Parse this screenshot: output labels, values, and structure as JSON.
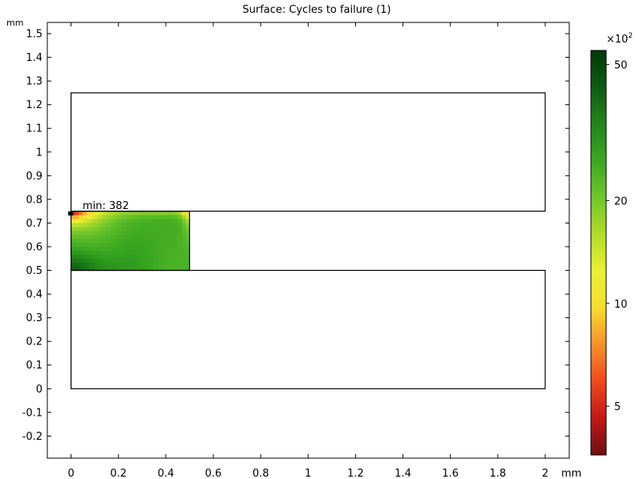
{
  "chart_data": {
    "type": "heatmap",
    "title": "Surface: Cycles to failure (1)",
    "unit_label": "mm",
    "xlim": [
      -0.1,
      2.1
    ],
    "ylim": [
      -0.3,
      1.55
    ],
    "x_ticks": [
      0,
      0.2,
      0.4,
      0.6,
      0.8,
      1,
      1.2,
      1.4,
      1.6,
      1.8,
      2
    ],
    "x_tick_labels": [
      "0",
      "0.2",
      "0.4",
      "0.6",
      "0.8",
      "1",
      "1.2",
      "1.4",
      "1.6",
      "1.8",
      "2"
    ],
    "y_ticks": [
      -0.2,
      -0.1,
      0,
      0.1,
      0.2,
      0.3,
      0.4,
      0.5,
      0.6,
      0.7,
      0.8,
      0.9,
      1,
      1.1,
      1.2,
      1.3,
      1.4,
      1.5
    ],
    "y_tick_labels": [
      "-0.2",
      "-0.1",
      "0",
      "0.1",
      "0.2",
      "0.3",
      "0.4",
      "0.5",
      "0.6",
      "0.7",
      "0.8",
      "0.9",
      "1",
      "1.1",
      "1.2",
      "1.3",
      "1.4",
      "1.5"
    ],
    "outlines": [
      {
        "name": "upper-block",
        "x": [
          0,
          2
        ],
        "y": [
          0.75,
          1.25
        ]
      },
      {
        "name": "lower-block",
        "x": [
          0,
          2
        ],
        "y": [
          0,
          0.5
        ]
      },
      {
        "name": "filled-region",
        "x": [
          0,
          0.5
        ],
        "y": [
          0.5,
          0.75
        ]
      }
    ],
    "surface": {
      "x_range": [
        0,
        0.5
      ],
      "y_range": [
        0.5,
        0.75
      ],
      "color_scale": "log",
      "min_value": 382,
      "max_value": 5500
    },
    "min_annotation": {
      "text": "min: 382",
      "x": 0.0,
      "y": 0.74
    },
    "colorbar": {
      "multiplier_label": "×10",
      "multiplier_exponent": "2",
      "scale": "log",
      "range": [
        3.6,
        55
      ],
      "ticks": [
        5,
        10,
        20,
        50
      ],
      "tick_labels": [
        "5",
        "10",
        "20",
        "50"
      ],
      "colors": [
        "#6d0f10",
        "#c41818",
        "#ef4b1c",
        "#f7902a",
        "#f7dd2f",
        "#e8f131",
        "#b2dc2a",
        "#6fc62a",
        "#3aa822",
        "#22861b",
        "#0e5c12",
        "#003a06"
      ]
    }
  }
}
